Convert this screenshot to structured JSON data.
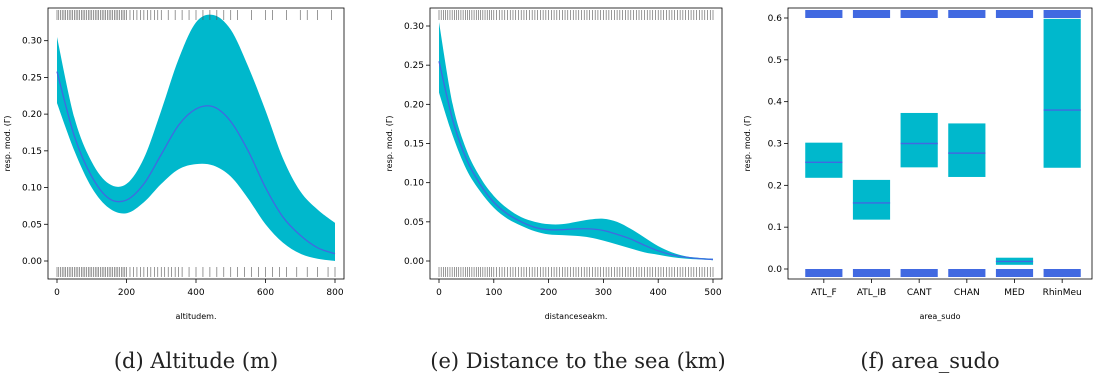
{
  "captions": [
    "(d) Altitude (m)",
    "(e) Distance to the sea (km)",
    "(f) area_sudo"
  ],
  "colors": {
    "band": "#00b8cc",
    "curve": "#4169e1",
    "rug": "#555555",
    "box": "#4169e1"
  },
  "chart_data": [
    {
      "type": "area",
      "xlabel": "altitudem.",
      "ylabel": "resp. mod. (Γ)",
      "xlim": [
        0,
        800
      ],
      "ylim": [
        0,
        0.32
      ],
      "xticks": [
        0,
        200,
        400,
        600,
        800
      ],
      "yticks": [
        0.0,
        0.05,
        0.1,
        0.15,
        0.2,
        0.25,
        0.3
      ],
      "ytick_labels": [
        "0.00",
        "0.05",
        "0.10",
        "0.15",
        "0.20",
        "0.25",
        "0.30"
      ],
      "x": [
        0,
        50,
        100,
        150,
        200,
        250,
        300,
        350,
        400,
        450,
        500,
        550,
        600,
        650,
        700,
        750,
        800
      ],
      "mean": [
        0.258,
        0.17,
        0.115,
        0.085,
        0.083,
        0.105,
        0.145,
        0.185,
        0.207,
        0.21,
        0.19,
        0.15,
        0.1,
        0.06,
        0.035,
        0.018,
        0.01
      ],
      "upper": [
        0.305,
        0.195,
        0.135,
        0.105,
        0.105,
        0.14,
        0.205,
        0.275,
        0.325,
        0.335,
        0.315,
        0.265,
        0.205,
        0.14,
        0.095,
        0.07,
        0.052
      ],
      "lower": [
        0.215,
        0.15,
        0.1,
        0.072,
        0.065,
        0.08,
        0.105,
        0.125,
        0.132,
        0.13,
        0.115,
        0.085,
        0.05,
        0.025,
        0.01,
        0.003,
        0.0
      ],
      "rug_top": [
        0,
        5,
        10,
        15,
        20,
        25,
        30,
        35,
        40,
        45,
        50,
        55,
        60,
        65,
        70,
        75,
        80,
        85,
        90,
        95,
        100,
        105,
        110,
        115,
        120,
        125,
        130,
        135,
        140,
        145,
        150,
        155,
        160,
        165,
        170,
        175,
        180,
        185,
        190,
        195,
        200,
        210,
        220,
        230,
        240,
        250,
        260,
        270,
        280,
        290,
        300,
        320,
        340,
        360,
        380,
        400,
        420,
        440,
        460,
        480,
        500,
        520,
        560,
        600,
        620,
        660,
        700,
        720,
        750,
        790
      ],
      "rug_bottom": [
        0,
        5,
        10,
        15,
        20,
        25,
        30,
        35,
        40,
        45,
        50,
        55,
        60,
        65,
        70,
        75,
        80,
        85,
        90,
        95,
        100,
        105,
        110,
        115,
        120,
        125,
        130,
        135,
        140,
        145,
        150,
        155,
        160,
        165,
        170,
        175,
        180,
        185,
        190,
        195,
        200,
        210,
        220,
        230,
        240,
        250,
        260,
        270,
        280,
        290,
        300,
        310,
        320,
        330,
        340,
        350,
        360,
        380,
        400,
        420,
        440,
        460,
        480,
        500,
        520,
        540,
        560,
        580,
        600,
        620,
        640,
        660,
        690,
        720,
        750,
        780,
        800
      ]
    },
    {
      "type": "area",
      "xlabel": "distanceseakm.",
      "ylabel": "resp. mod. (Γ)",
      "xlim": [
        0,
        500
      ],
      "ylim": [
        0,
        0.3
      ],
      "xticks": [
        0,
        100,
        200,
        300,
        400,
        500
      ],
      "yticks": [
        0.0,
        0.05,
        0.1,
        0.15,
        0.2,
        0.25,
        0.3
      ],
      "ytick_labels": [
        "0.00",
        "0.05",
        "0.10",
        "0.15",
        "0.20",
        "0.25",
        "0.30"
      ],
      "x": [
        0,
        25,
        50,
        75,
        100,
        125,
        150,
        175,
        200,
        225,
        250,
        275,
        300,
        325,
        350,
        375,
        400,
        425,
        450,
        475,
        500
      ],
      "mean": [
        0.255,
        0.18,
        0.13,
        0.098,
        0.075,
        0.06,
        0.05,
        0.043,
        0.04,
        0.04,
        0.041,
        0.041,
        0.039,
        0.034,
        0.028,
        0.02,
        0.013,
        0.008,
        0.005,
        0.003,
        0.002
      ],
      "upper": [
        0.305,
        0.2,
        0.142,
        0.107,
        0.083,
        0.067,
        0.056,
        0.05,
        0.047,
        0.047,
        0.05,
        0.053,
        0.054,
        0.05,
        0.041,
        0.03,
        0.019,
        0.011,
        0.006,
        0.004,
        0.003
      ],
      "lower": [
        0.215,
        0.16,
        0.117,
        0.089,
        0.068,
        0.054,
        0.045,
        0.038,
        0.034,
        0.033,
        0.032,
        0.03,
        0.026,
        0.021,
        0.016,
        0.011,
        0.008,
        0.005,
        0.003,
        0.002,
        0.001
      ],
      "rug_top": [
        0,
        4,
        8,
        12,
        16,
        20,
        24,
        28,
        32,
        36,
        40,
        44,
        48,
        52,
        56,
        60,
        64,
        68,
        72,
        76,
        80,
        84,
        88,
        92,
        96,
        100,
        105,
        110,
        115,
        120,
        125,
        130,
        135,
        140,
        145,
        150,
        155,
        160,
        165,
        170,
        175,
        180,
        185,
        190,
        195,
        200,
        205,
        210,
        215,
        220,
        225,
        230,
        235,
        240,
        245,
        250,
        255,
        260,
        265,
        270,
        275,
        280,
        285,
        290,
        295,
        300,
        305,
        310,
        315,
        320,
        325,
        330,
        335,
        340,
        345,
        350,
        355,
        360,
        365,
        370,
        375,
        380,
        385,
        390,
        395,
        400,
        405,
        410,
        415,
        420,
        425,
        430,
        435,
        440,
        445,
        450,
        455,
        460,
        465,
        470,
        475,
        480,
        485,
        490,
        495,
        500
      ],
      "rug_bottom": [
        0,
        4,
        8,
        12,
        16,
        20,
        24,
        28,
        32,
        36,
        40,
        44,
        48,
        52,
        56,
        60,
        64,
        68,
        72,
        76,
        80,
        84,
        88,
        92,
        96,
        100,
        105,
        110,
        115,
        120,
        125,
        130,
        135,
        140,
        145,
        150,
        155,
        160,
        165,
        170,
        175,
        180,
        185,
        190,
        195,
        200,
        205,
        210,
        215,
        220,
        225,
        230,
        235,
        240,
        245,
        250,
        255,
        260,
        265,
        270,
        275,
        280,
        285,
        290,
        295,
        300,
        305,
        310,
        315,
        320,
        325,
        330,
        335,
        340,
        345,
        350,
        355,
        360,
        365,
        370,
        375,
        380,
        385,
        390,
        395,
        400,
        405,
        410,
        415,
        420,
        425,
        430,
        435,
        440,
        445,
        450,
        455,
        460,
        465,
        470,
        475,
        480,
        485,
        490,
        495,
        500
      ]
    },
    {
      "type": "bar",
      "xlabel": "area_sudo",
      "ylabel": "resp. mod. (Γ)",
      "ylim": [
        0,
        0.6
      ],
      "yticks": [
        0.0,
        0.1,
        0.2,
        0.3,
        0.4,
        0.5,
        0.6
      ],
      "ytick_labels": [
        "0.0",
        "0.1",
        "0.2",
        "0.3",
        "0.4",
        "0.5",
        "0.6"
      ],
      "categories": [
        "ATL_F",
        "ATL_IB",
        "CANT",
        "CHAN",
        "MED",
        "RhinMeu"
      ],
      "mean": [
        0.255,
        0.158,
        0.3,
        0.277,
        0.018,
        0.38
      ],
      "lower": [
        0.218,
        0.118,
        0.243,
        0.22,
        0.01,
        0.242
      ],
      "upper": [
        0.302,
        0.213,
        0.373,
        0.348,
        0.027,
        0.598
      ]
    }
  ]
}
